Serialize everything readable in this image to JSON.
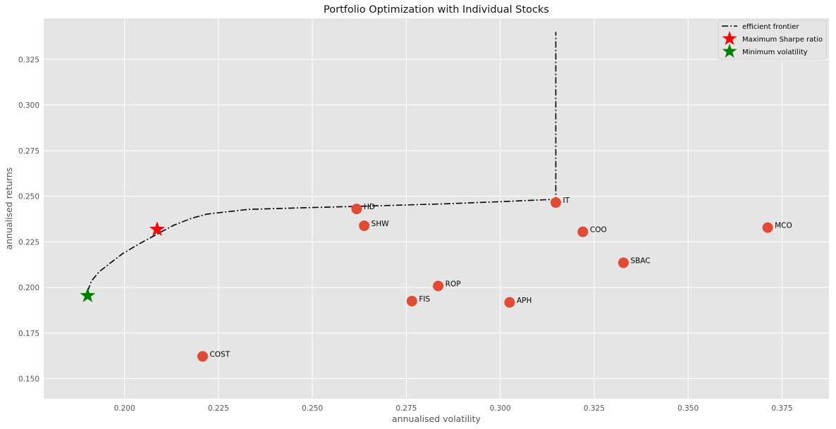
{
  "chart_data": {
    "type": "scatter",
    "title": "Portfolio Optimization with Individual Stocks",
    "xlabel": "annualised volatility",
    "ylabel": "annualised returns",
    "xlim": [
      0.1785,
      0.3875
    ],
    "ylim": [
      0.139,
      0.3475
    ],
    "xticks": [
      0.2,
      0.225,
      0.25,
      0.275,
      0.3,
      0.325,
      0.35,
      0.375
    ],
    "yticks": [
      0.15,
      0.175,
      0.2,
      0.225,
      0.25,
      0.275,
      0.3,
      0.325
    ],
    "grid": true,
    "background": "#e5e5e5",
    "legend_position": "top-right",
    "stocks": [
      {
        "label": "COST",
        "x": 0.2208,
        "y": 0.1622
      },
      {
        "label": "HD",
        "x": 0.2618,
        "y": 0.243
      },
      {
        "label": "SHW",
        "x": 0.2638,
        "y": 0.2338
      },
      {
        "label": "FIS",
        "x": 0.2765,
        "y": 0.1925
      },
      {
        "label": "ROP",
        "x": 0.2835,
        "y": 0.2008
      },
      {
        "label": "APH",
        "x": 0.3025,
        "y": 0.1918
      },
      {
        "label": "IT",
        "x": 0.3148,
        "y": 0.2465
      },
      {
        "label": "COO",
        "x": 0.322,
        "y": 0.2305
      },
      {
        "label": "SBAC",
        "x": 0.3328,
        "y": 0.2135
      },
      {
        "label": "MCO",
        "x": 0.3712,
        "y": 0.2328
      }
    ],
    "stock_color": "#e24a33",
    "efficient_frontier": {
      "name": "efficient frontier",
      "color": "#000000",
      "points": [
        [
          0.1902,
          0.198
        ],
        [
          0.1912,
          0.2035
        ],
        [
          0.1932,
          0.2085
        ],
        [
          0.196,
          0.213
        ],
        [
          0.1995,
          0.2185
        ],
        [
          0.204,
          0.224
        ],
        [
          0.2085,
          0.229
        ],
        [
          0.213,
          0.234
        ],
        [
          0.218,
          0.238
        ],
        [
          0.222,
          0.2402
        ],
        [
          0.233,
          0.2428
        ],
        [
          0.25,
          0.2438
        ],
        [
          0.265,
          0.2446
        ],
        [
          0.285,
          0.2458
        ],
        [
          0.3,
          0.247
        ],
        [
          0.3148,
          0.2483
        ],
        [
          0.3148,
          0.26
        ],
        [
          0.3148,
          0.28
        ],
        [
          0.3148,
          0.3
        ],
        [
          0.3148,
          0.32
        ],
        [
          0.3148,
          0.34
        ]
      ]
    },
    "max_sharpe": {
      "name": "Maximum Sharpe ratio",
      "x": 0.2087,
      "y": 0.2318,
      "color": "#ff0000"
    },
    "min_volatility": {
      "name": "Minimum volatility",
      "x": 0.1902,
      "y": 0.1955,
      "color": "#008000"
    }
  }
}
